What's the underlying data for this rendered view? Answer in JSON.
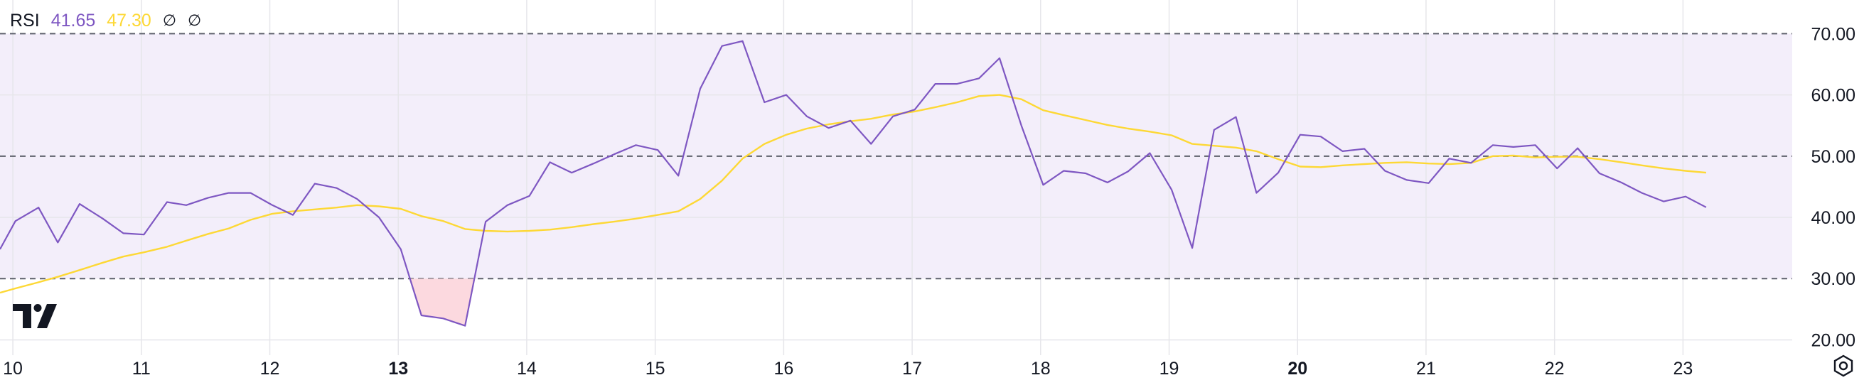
{
  "legend": {
    "indicator": "RSI",
    "rsi_value": "41.65",
    "ma_value": "47.30",
    "symbol_a": "∅",
    "symbol_b": "∅"
  },
  "icons": {
    "logo": "tradingview-logo-icon",
    "settings": "settings-gear-icon"
  },
  "colors": {
    "rsi_line": "#7e57c2",
    "ma_line": "#fdd835",
    "band_fill": "#f3eefa",
    "oversold_fill": "#fcd5dc",
    "grid": "#e6e6ea",
    "dash": "#5d606b",
    "axis_text": "#131722"
  },
  "chart_data": {
    "type": "line",
    "ylim": [
      17.5,
      75.5
    ],
    "y_ticks": [
      "70.00",
      "60.00",
      "50.00",
      "40.00",
      "30.00",
      "20.00"
    ],
    "y_tick_values": [
      70,
      60,
      50,
      40,
      30,
      20
    ],
    "band": {
      "upper": 70,
      "lower": 30,
      "middle": 50
    },
    "xlim": [
      9.9,
      23.85
    ],
    "x_ticks": [
      {
        "label": "10",
        "value": 10,
        "bold": false
      },
      {
        "label": "11",
        "value": 11,
        "bold": false
      },
      {
        "label": "12",
        "value": 12,
        "bold": false
      },
      {
        "label": "13",
        "value": 13,
        "bold": true
      },
      {
        "label": "14",
        "value": 14,
        "bold": false
      },
      {
        "label": "15",
        "value": 15,
        "bold": false
      },
      {
        "label": "16",
        "value": 16,
        "bold": false
      },
      {
        "label": "17",
        "value": 17,
        "bold": false
      },
      {
        "label": "18",
        "value": 18,
        "bold": false
      },
      {
        "label": "19",
        "value": 19,
        "bold": false
      },
      {
        "label": "20",
        "value": 20,
        "bold": true
      },
      {
        "label": "21",
        "value": 21,
        "bold": false
      },
      {
        "label": "22",
        "value": 22,
        "bold": false
      },
      {
        "label": "23",
        "value": 23,
        "bold": false
      }
    ],
    "series": [
      {
        "key": "rsi",
        "points": [
          [
            9.9,
            34.8
          ],
          [
            10.02,
            39.4
          ],
          [
            10.2,
            41.6
          ],
          [
            10.35,
            35.9
          ],
          [
            10.52,
            42.2
          ],
          [
            10.7,
            39.8
          ],
          [
            10.86,
            37.4
          ],
          [
            11.02,
            37.2
          ],
          [
            11.2,
            42.5
          ],
          [
            11.35,
            42.0
          ],
          [
            11.52,
            43.2
          ],
          [
            11.68,
            44.0
          ],
          [
            11.85,
            44.0
          ],
          [
            12.02,
            42.0
          ],
          [
            12.18,
            40.4
          ],
          [
            12.35,
            45.5
          ],
          [
            12.52,
            44.8
          ],
          [
            12.68,
            43.0
          ],
          [
            12.85,
            40.0
          ],
          [
            13.02,
            34.8
          ],
          [
            13.18,
            24.0
          ],
          [
            13.35,
            23.5
          ],
          [
            13.52,
            22.3
          ],
          [
            13.68,
            39.3
          ],
          [
            13.85,
            42.0
          ],
          [
            14.02,
            43.5
          ],
          [
            14.18,
            49.0
          ],
          [
            14.35,
            47.3
          ],
          [
            14.52,
            48.8
          ],
          [
            14.68,
            50.3
          ],
          [
            14.85,
            51.8
          ],
          [
            15.02,
            51.0
          ],
          [
            15.18,
            46.8
          ],
          [
            15.35,
            61.0
          ],
          [
            15.52,
            68.0
          ],
          [
            15.68,
            68.8
          ],
          [
            15.85,
            58.8
          ],
          [
            16.02,
            60.0
          ],
          [
            16.18,
            56.5
          ],
          [
            16.35,
            54.6
          ],
          [
            16.52,
            55.8
          ],
          [
            16.68,
            52.0
          ],
          [
            16.85,
            56.5
          ],
          [
            17.02,
            57.6
          ],
          [
            17.18,
            61.8
          ],
          [
            17.35,
            61.8
          ],
          [
            17.52,
            62.7
          ],
          [
            17.68,
            66.0
          ],
          [
            17.85,
            55.0
          ],
          [
            18.02,
            45.3
          ],
          [
            18.18,
            47.6
          ],
          [
            18.35,
            47.2
          ],
          [
            18.52,
            45.7
          ],
          [
            18.68,
            47.5
          ],
          [
            18.85,
            50.5
          ],
          [
            19.02,
            44.5
          ],
          [
            19.18,
            35.0
          ],
          [
            19.35,
            54.3
          ],
          [
            19.52,
            56.4
          ],
          [
            19.68,
            44.0
          ],
          [
            19.85,
            47.3
          ],
          [
            20.02,
            53.5
          ],
          [
            20.18,
            53.2
          ],
          [
            20.35,
            50.8
          ],
          [
            20.52,
            51.2
          ],
          [
            20.68,
            47.6
          ],
          [
            20.85,
            46.1
          ],
          [
            21.02,
            45.6
          ],
          [
            21.18,
            49.6
          ],
          [
            21.35,
            48.9
          ],
          [
            21.52,
            51.8
          ],
          [
            21.68,
            51.5
          ],
          [
            21.85,
            51.8
          ],
          [
            22.02,
            48.0
          ],
          [
            22.18,
            51.3
          ],
          [
            22.35,
            47.2
          ],
          [
            22.52,
            45.7
          ],
          [
            22.68,
            44.0
          ],
          [
            22.85,
            42.6
          ],
          [
            23.02,
            43.4
          ],
          [
            23.18,
            41.65
          ]
        ]
      },
      {
        "key": "ma",
        "points": [
          [
            9.9,
            27.7
          ],
          [
            10.02,
            28.4
          ],
          [
            10.2,
            29.4
          ],
          [
            10.35,
            30.3
          ],
          [
            10.52,
            31.4
          ],
          [
            10.7,
            32.6
          ],
          [
            10.86,
            33.6
          ],
          [
            11.02,
            34.3
          ],
          [
            11.2,
            35.2
          ],
          [
            11.35,
            36.2
          ],
          [
            11.52,
            37.3
          ],
          [
            11.68,
            38.2
          ],
          [
            11.85,
            39.6
          ],
          [
            12.02,
            40.6
          ],
          [
            12.18,
            41.0
          ],
          [
            12.35,
            41.3
          ],
          [
            12.52,
            41.6
          ],
          [
            12.68,
            42.0
          ],
          [
            12.85,
            41.8
          ],
          [
            13.02,
            41.4
          ],
          [
            13.18,
            40.2
          ],
          [
            13.35,
            39.4
          ],
          [
            13.52,
            38.1
          ],
          [
            13.68,
            37.8
          ],
          [
            13.85,
            37.7
          ],
          [
            14.02,
            37.8
          ],
          [
            14.18,
            38.0
          ],
          [
            14.35,
            38.4
          ],
          [
            14.52,
            38.9
          ],
          [
            14.68,
            39.3
          ],
          [
            14.85,
            39.8
          ],
          [
            15.02,
            40.4
          ],
          [
            15.18,
            41.0
          ],
          [
            15.35,
            43.0
          ],
          [
            15.52,
            46.0
          ],
          [
            15.68,
            49.6
          ],
          [
            15.85,
            52.0
          ],
          [
            16.02,
            53.5
          ],
          [
            16.18,
            54.5
          ],
          [
            16.35,
            55.2
          ],
          [
            16.52,
            55.7
          ],
          [
            16.68,
            56.1
          ],
          [
            16.85,
            56.8
          ],
          [
            17.02,
            57.3
          ],
          [
            17.18,
            58.0
          ],
          [
            17.35,
            58.8
          ],
          [
            17.52,
            59.8
          ],
          [
            17.68,
            60.0
          ],
          [
            17.85,
            59.3
          ],
          [
            18.02,
            57.5
          ],
          [
            18.18,
            56.7
          ],
          [
            18.35,
            55.9
          ],
          [
            18.52,
            55.1
          ],
          [
            18.68,
            54.5
          ],
          [
            18.85,
            54.0
          ],
          [
            19.02,
            53.4
          ],
          [
            19.18,
            52.0
          ],
          [
            19.35,
            51.7
          ],
          [
            19.52,
            51.4
          ],
          [
            19.68,
            50.8
          ],
          [
            19.85,
            49.5
          ],
          [
            20.02,
            48.3
          ],
          [
            20.18,
            48.2
          ],
          [
            20.35,
            48.5
          ],
          [
            20.52,
            48.7
          ],
          [
            20.68,
            48.9
          ],
          [
            20.85,
            49.0
          ],
          [
            21.02,
            48.8
          ],
          [
            21.18,
            48.7
          ],
          [
            21.35,
            48.9
          ],
          [
            21.52,
            50.0
          ],
          [
            21.68,
            50.1
          ],
          [
            21.85,
            49.8
          ],
          [
            22.02,
            49.9
          ],
          [
            22.18,
            49.9
          ],
          [
            22.35,
            49.5
          ],
          [
            22.52,
            49.0
          ],
          [
            22.68,
            48.5
          ],
          [
            22.85,
            48.0
          ],
          [
            23.02,
            47.6
          ],
          [
            23.18,
            47.3
          ]
        ]
      }
    ]
  }
}
